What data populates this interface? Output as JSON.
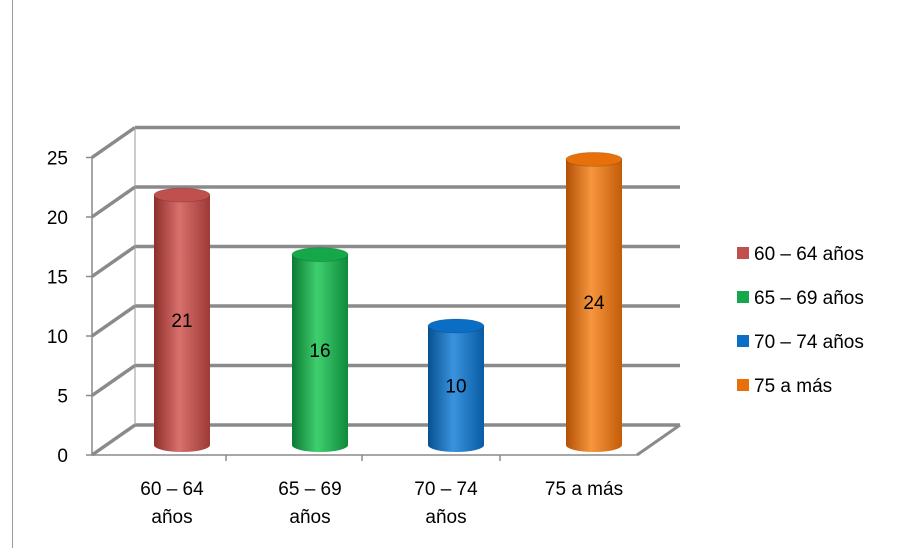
{
  "chart_data": {
    "type": "bar",
    "style": "3d-cylinder",
    "categories": [
      "60 – 64 años",
      "65 – 69 años",
      "70 – 74 años",
      "75 a más"
    ],
    "category_labels": [
      [
        "60 – 64",
        "años"
      ],
      [
        "65 – 69",
        "años"
      ],
      [
        "70 – 74",
        "años"
      ],
      [
        "75 a más"
      ]
    ],
    "values": [
      21,
      16,
      10,
      24
    ],
    "colors": [
      "#c0504d",
      "#14a84a",
      "#0a6fc4",
      "#e8700a"
    ],
    "legend": [
      "60 – 64 años",
      "65 – 69 años",
      "70 – 74 años",
      "75 a más"
    ],
    "legend_position": "right",
    "yticks": [
      "0",
      "5",
      "10",
      "15",
      "20",
      "25"
    ],
    "ylim": [
      0,
      25
    ],
    "grid": true
  }
}
